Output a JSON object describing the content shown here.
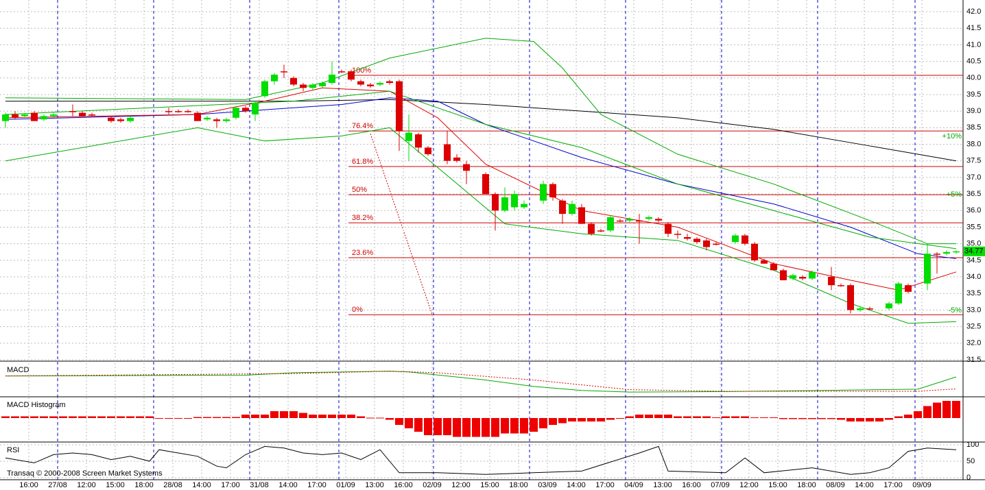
{
  "chart_data": {
    "type": "candlestick",
    "ylim": [
      31.5,
      42.0
    ],
    "yticks": [
      {
        "value": 42.0,
        "label": "42.0"
      },
      {
        "value": 41.5,
        "label": "41.5"
      },
      {
        "value": 41.0,
        "label": "41.0"
      },
      {
        "value": 40.5,
        "label": "40.5"
      },
      {
        "value": 40.0,
        "label": "40.0"
      },
      {
        "value": 39.5,
        "label": "39.5"
      },
      {
        "value": 39.0,
        "label": "39.0"
      },
      {
        "value": 38.5,
        "label": "38.5"
      },
      {
        "value": 38.0,
        "label": "38.0"
      },
      {
        "value": 37.5,
        "label": "37.5"
      },
      {
        "value": 37.0,
        "label": "37.0"
      },
      {
        "value": 36.5,
        "label": "36.5"
      },
      {
        "value": 36.0,
        "label": "36.0"
      },
      {
        "value": 35.5,
        "label": "35.5"
      },
      {
        "value": 35.0,
        "label": "35.0"
      },
      {
        "value": 34.5,
        "label": "34.5"
      },
      {
        "value": 34.0,
        "label": "34.0"
      },
      {
        "value": 33.5,
        "label": "33.5"
      },
      {
        "value": 33.0,
        "label": "33.0"
      },
      {
        "value": 32.5,
        "label": "32.5"
      },
      {
        "value": 32.0,
        "label": "32.0"
      },
      {
        "value": 31.5,
        "label": "31.5"
      }
    ],
    "time_labels": [
      "16:00",
      "27/08",
      "12:00",
      "15:00",
      "18:00",
      "28/08",
      "14:00",
      "17:00",
      "31/08",
      "14:00",
      "17:00",
      "01/09",
      "13:00",
      "16:00",
      "02/09",
      "12:00",
      "15:00",
      "18:00",
      "03/09",
      "14:00",
      "17:00",
      "04/09",
      "13:00",
      "16:00",
      "07/09",
      "12:00",
      "15:00",
      "18:00",
      "08/09",
      "14:00",
      "17:00",
      "09/09"
    ],
    "up_color": "#00dd00",
    "down_color": "#dd0000",
    "open": [
      38.7,
      38.9,
      38.85,
      38.95,
      38.75,
      38.85,
      null,
      39.0,
      38.95,
      38.9,
      null,
      38.8,
      38.75,
      38.7,
      null,
      null,
      null,
      39.0,
      39.0,
      39.0,
      38.95,
      38.75,
      38.75,
      38.7,
      38.8,
      39.1,
      38.9,
      39.45,
      39.9,
      40.2,
      40.0,
      39.8,
      39.7,
      39.75,
      39.85,
      40.2,
      40.2,
      39.9,
      39.8,
      39.8,
      39.9,
      39.9,
      38.1,
      38.3,
      37.9,
      null,
      38.0,
      37.6,
      37.4,
      null,
      37.1,
      36.5,
      36.0,
      36.1,
      36.1,
      null,
      36.3,
      36.8,
      36.3,
      35.9,
      36.1,
      35.6,
      35.4,
      35.4,
      35.7,
      35.7,
      35.7,
      35.75,
      35.75,
      35.6,
      35.3,
      35.2,
      35.15,
      35.1,
      35.0,
      null,
      35.05,
      35.25,
      35.0,
      34.5,
      34.4,
      34.2,
      33.95,
      34.0,
      33.95,
      null,
      34.0,
      33.75,
      33.75,
      33.0,
      33.05,
      null,
      33.05,
      33.2,
      33.75,
      null,
      33.8,
      34.7,
      34.7,
      34.75
    ],
    "high": [
      38.95,
      39.0,
      38.95,
      39.0,
      38.9,
      38.95,
      null,
      39.2,
      39.0,
      38.95,
      null,
      38.85,
      38.8,
      38.85,
      null,
      null,
      null,
      39.1,
      39.05,
      39.05,
      39.0,
      38.85,
      38.8,
      38.8,
      39.15,
      39.15,
      39.3,
      39.95,
      40.15,
      40.4,
      40.05,
      39.85,
      39.85,
      39.9,
      40.5,
      40.25,
      40.25,
      39.95,
      39.85,
      39.9,
      39.95,
      39.95,
      38.9,
      38.35,
      37.95,
      null,
      38.4,
      37.7,
      37.5,
      null,
      37.15,
      36.55,
      36.7,
      36.6,
      36.3,
      null,
      36.9,
      36.85,
      36.35,
      36.3,
      36.2,
      35.65,
      35.45,
      35.85,
      35.75,
      35.8,
      35.9,
      35.85,
      35.8,
      35.65,
      35.4,
      35.3,
      35.2,
      35.15,
      35.05,
      null,
      35.3,
      35.3,
      35.05,
      34.55,
      34.45,
      34.25,
      34.1,
      34.05,
      34.2,
      null,
      34.3,
      33.8,
      33.8,
      33.1,
      33.1,
      null,
      33.25,
      33.85,
      33.8,
      null,
      35.0,
      34.75,
      34.8,
      34.8
    ],
    "low": [
      38.5,
      38.75,
      38.8,
      38.7,
      38.7,
      38.8,
      null,
      38.85,
      38.85,
      38.85,
      null,
      38.65,
      38.65,
      38.65,
      null,
      null,
      null,
      38.9,
      38.95,
      38.95,
      38.7,
      38.7,
      38.5,
      38.65,
      38.75,
      38.95,
      38.7,
      39.4,
      39.8,
      40.0,
      39.75,
      39.6,
      39.65,
      39.7,
      39.8,
      40.15,
      39.9,
      39.75,
      39.7,
      39.75,
      39.8,
      37.8,
      37.5,
      37.75,
      37.65,
      null,
      37.4,
      37.45,
      36.8,
      null,
      36.5,
      35.4,
      35.95,
      36.0,
      36.05,
      null,
      36.2,
      36.3,
      35.6,
      35.85,
      35.6,
      35.25,
      35.35,
      35.35,
      35.65,
      35.65,
      35.0,
      35.7,
      35.65,
      35.2,
      35.15,
      35.1,
      35.0,
      34.8,
      34.95,
      null,
      35.0,
      34.95,
      34.45,
      34.4,
      34.2,
      33.9,
      33.9,
      33.9,
      33.9,
      null,
      33.6,
      33.7,
      32.9,
      32.95,
      33.0,
      null,
      33.0,
      33.15,
      33.5,
      null,
      33.6,
      34.1,
      34.65,
      34.7
    ],
    "close": [
      38.9,
      38.8,
      38.9,
      38.7,
      38.85,
      38.9,
      null,
      39.0,
      38.85,
      38.9,
      null,
      38.7,
      38.7,
      38.8,
      null,
      null,
      null,
      39.0,
      39.0,
      39.0,
      38.7,
      38.8,
      38.7,
      38.75,
      39.1,
      39.0,
      39.25,
      39.9,
      40.1,
      40.2,
      39.8,
      39.7,
      39.8,
      39.85,
      40.1,
      40.2,
      39.95,
      39.8,
      39.75,
      39.85,
      39.85,
      38.4,
      38.35,
      37.9,
      37.7,
      null,
      37.5,
      37.5,
      37.2,
      null,
      36.5,
      36.0,
      36.4,
      36.5,
      36.2,
      null,
      36.8,
      36.4,
      35.9,
      36.2,
      35.6,
      35.3,
      35.4,
      35.8,
      35.7,
      35.75,
      35.7,
      35.8,
      35.7,
      35.3,
      35.3,
      35.15,
      35.05,
      34.9,
      35.0,
      null,
      35.25,
      35.0,
      34.5,
      34.4,
      34.2,
      33.9,
      34.05,
      33.95,
      34.15,
      null,
      33.75,
      33.75,
      33.0,
      33.05,
      33.05,
      null,
      33.2,
      33.8,
      33.55,
      null,
      34.7,
      34.7,
      34.75,
      34.77
    ],
    "overlays": [
      {
        "color": "#000000",
        "x": [
          0,
          10,
          20,
          30,
          40,
          50,
          60,
          70,
          80,
          90,
          99
        ],
        "values": [
          39.3,
          39.3,
          39.3,
          39.3,
          39.35,
          39.2,
          39.0,
          38.8,
          38.45,
          37.95,
          37.5
        ]
      },
      {
        "color": "#0000cc",
        "x": [
          0,
          20,
          35,
          40,
          45,
          50,
          60,
          70,
          80,
          88,
          95,
          99
        ],
        "values": [
          38.75,
          38.9,
          39.2,
          39.4,
          39.3,
          38.6,
          37.6,
          36.8,
          36.2,
          35.5,
          34.7,
          34.55
        ]
      },
      {
        "color": "#dd0000",
        "x": [
          0,
          20,
          27,
          33,
          40,
          45,
          50,
          60,
          70,
          80,
          88,
          93,
          99
        ],
        "values": [
          38.8,
          38.9,
          39.3,
          39.7,
          39.6,
          38.8,
          37.4,
          36.0,
          35.5,
          34.4,
          33.9,
          33.6,
          34.15
        ]
      },
      {
        "color": "#00aa00",
        "x": [
          0,
          25,
          33,
          40,
          50,
          55,
          58,
          62,
          70,
          80,
          90,
          96,
          99
        ],
        "values": [
          39.4,
          39.35,
          39.85,
          40.6,
          41.2,
          41.1,
          40.3,
          38.9,
          37.7,
          36.8,
          35.7,
          35.0,
          35.0
        ]
      },
      {
        "color": "#00aa00",
        "x": [
          0,
          20,
          27,
          35,
          40,
          45,
          52,
          60,
          70,
          80,
          88,
          94,
          99
        ],
        "values": [
          37.5,
          38.5,
          38.1,
          38.25,
          38.5,
          37.3,
          35.6,
          35.3,
          35.1,
          34.2,
          33.2,
          32.6,
          32.65
        ]
      },
      {
        "color": "#00aa00",
        "x": [
          0,
          30,
          40,
          50,
          60,
          70,
          80,
          90,
          99
        ],
        "values": [
          38.9,
          39.3,
          39.6,
          38.6,
          37.9,
          36.8,
          36.0,
          35.2,
          34.85
        ]
      }
    ],
    "fib_levels": [
      {
        "label": "100%",
        "value": 40.08
      },
      {
        "label": "76.4%",
        "value": 38.4
      },
      {
        "label": "61.8%",
        "value": 37.33
      },
      {
        "label": "50%",
        "value": 36.48
      },
      {
        "label": "38.2%",
        "value": 35.63
      },
      {
        "label": "23.6%",
        "value": 34.58
      },
      {
        "label": "0%",
        "value": 32.86
      }
    ],
    "pct_markers": [
      {
        "label": "+10%",
        "value": 38.24
      },
      {
        "label": "+5%",
        "value": 36.48
      },
      {
        "label": "-5%",
        "value": 32.99
      }
    ],
    "last": 34.77,
    "macd": {
      "title": "MACD",
      "ylim": [
        -1,
        1
      ],
      "lines": [
        {
          "color": "#00aa00",
          "x": [
            0,
            25,
            30,
            40,
            42,
            50,
            55,
            60,
            65,
            75,
            85,
            95,
            99
          ],
          "values": [
            0.25,
            0.3,
            0.45,
            0.55,
            0.5,
            0.0,
            -0.4,
            -0.65,
            -0.75,
            -0.72,
            -0.65,
            -0.57,
            0.19
          ]
        },
        {
          "color": "#dd0000",
          "dashed": true,
          "x": [
            0,
            30,
            40,
            45,
            55,
            65,
            75,
            95,
            99
          ],
          "values": [
            0.25,
            0.4,
            0.55,
            0.45,
            0.0,
            -0.6,
            -0.7,
            -0.7,
            -0.55
          ]
        }
      ]
    },
    "histogram": {
      "title": "MACD Histogram",
      "ylim": [
        -0.7,
        0.7
      ],
      "color": "#ee0000",
      "values": [
        0.05,
        0.05,
        0.05,
        0.05,
        0.05,
        0.05,
        0.05,
        0.05,
        0.05,
        0.05,
        0.05,
        0.05,
        0.05,
        0.05,
        0.05,
        0.05,
        0,
        0,
        0,
        0,
        0.03,
        0.03,
        0.03,
        0.03,
        0.03,
        0.1,
        0.1,
        0.1,
        0.2,
        0.2,
        0.2,
        0.15,
        0.1,
        0.1,
        0.1,
        0.1,
        0.1,
        0.05,
        0.01,
        0.01,
        -0.05,
        -0.2,
        -0.3,
        -0.4,
        -0.5,
        -0.5,
        -0.5,
        -0.55,
        -0.55,
        -0.55,
        -0.55,
        -0.55,
        -0.45,
        -0.45,
        -0.45,
        -0.4,
        -0.3,
        -0.2,
        -0.15,
        -0.1,
        -0.1,
        -0.1,
        -0.1,
        -0.05,
        0,
        0.05,
        0.1,
        0.1,
        0.1,
        0.1,
        0.05,
        0.05,
        0.05,
        0.05,
        0.02,
        0.05,
        0.05,
        0.05,
        0.02,
        0.02,
        0.02,
        -0.03,
        -0.03,
        -0.03,
        -0.03,
        -0.03,
        -0.03,
        -0.05,
        -0.1,
        -0.1,
        -0.1,
        -0.1,
        -0.05,
        0.05,
        0.1,
        0.2,
        0.35,
        0.45,
        0.5,
        0.5
      ]
    },
    "rsi": {
      "title": "RSI",
      "ylim": [
        0,
        100
      ],
      "yticks": [
        100,
        50,
        0
      ],
      "color": "#000000",
      "x": [
        0,
        3,
        5,
        7,
        9,
        11,
        13,
        15,
        16,
        18,
        20,
        22,
        23,
        25,
        27,
        29,
        31,
        33,
        35,
        37,
        39,
        41,
        45,
        50,
        55,
        60,
        66,
        68,
        69,
        75,
        77,
        79,
        84,
        88,
        90,
        92,
        94,
        96,
        99
      ],
      "values": [
        60,
        45,
        70,
        75,
        70,
        55,
        65,
        50,
        85,
        75,
        65,
        35,
        30,
        70,
        95,
        90,
        75,
        70,
        75,
        55,
        85,
        15,
        15,
        10,
        15,
        20,
        75,
        95,
        20,
        15,
        60,
        15,
        30,
        10,
        15,
        30,
        80,
        90,
        85
      ]
    },
    "footer": "Transaq © 2000-2008 Screen Market Systems"
  }
}
